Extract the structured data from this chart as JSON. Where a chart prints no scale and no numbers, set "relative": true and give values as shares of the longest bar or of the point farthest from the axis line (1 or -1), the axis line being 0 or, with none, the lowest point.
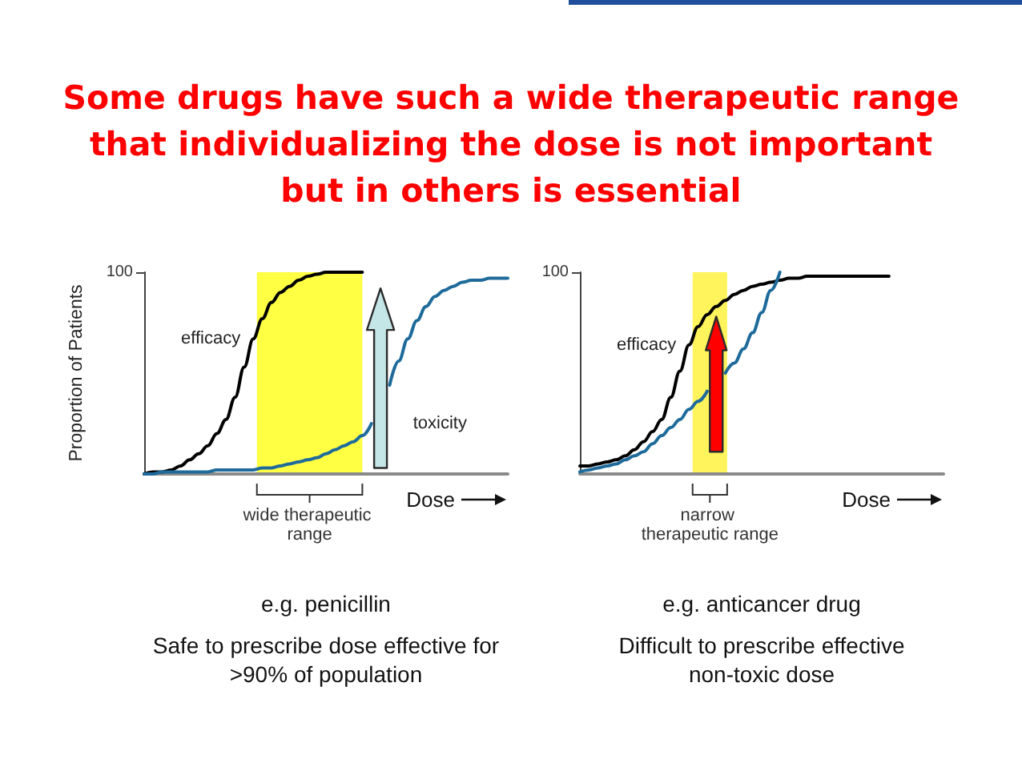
{
  "chart_data": [
    {
      "type": "line",
      "title": "Some drugs have such a wide therapeutic range that individualizing the dose is not important but in others is essential",
      "xlabel": "Dose",
      "ylabel": "Proportion of Patients",
      "relative": true,
      "categories": [
        null,
        null,
        null,
        null,
        null,
        null,
        null,
        null,
        null,
        null,
        null,
        null,
        null,
        null,
        null,
        null,
        null,
        null,
        null,
        null,
        null,
        null,
        null,
        null,
        null,
        null,
        null,
        null,
        null,
        null,
        null,
        null,
        null,
        null,
        null,
        null,
        null,
        null,
        null,
        null,
        null
      ],
      "series": [
        {
          "name": "efficacy",
          "color": "#000000",
          "values": [
            0,
            0.01,
            0.01,
            0.02,
            0.04,
            0.07,
            0.1,
            0.14,
            0.2,
            0.27,
            0.38,
            0.53,
            0.67,
            0.77,
            0.85,
            0.9,
            0.93,
            0.96,
            0.98,
            0.99,
            1,
            1,
            1,
            1,
            1,
            null,
            null,
            null,
            null,
            null,
            null,
            null,
            null,
            null,
            null,
            null,
            null,
            null,
            null,
            null,
            null
          ]
        },
        {
          "name": "toxicity",
          "color": "#1e6b9b",
          "values": [
            0,
            0,
            0.01,
            0.01,
            0.01,
            0.01,
            0.01,
            0.01,
            0.02,
            0.02,
            0.02,
            0.02,
            0.02,
            0.03,
            0.03,
            0.04,
            0.05,
            0.06,
            0.07,
            0.08,
            0.1,
            0.12,
            0.14,
            0.16,
            0.19,
            0.25,
            null,
            0.44,
            0.56,
            0.67,
            0.76,
            0.83,
            0.88,
            0.91,
            0.93,
            0.95,
            0.96,
            0.96,
            0.97,
            0.97,
            0.97
          ]
        }
      ],
      "annotations": [
        "100",
        "wide therapeutic range",
        "e.g. penicillin",
        "Safe to prescribe dose effective for >90% of population"
      ]
    },
    {
      "type": "line",
      "xlabel": "Dose",
      "relative": true,
      "categories": [
        null,
        null,
        null,
        null,
        null,
        null,
        null,
        null,
        null,
        null,
        null,
        null,
        null,
        null,
        null,
        null,
        null,
        null,
        null,
        null,
        null,
        null,
        null,
        null,
        null,
        null,
        null,
        null,
        null,
        null,
        null,
        null,
        null,
        null,
        null,
        null,
        null,
        null,
        null,
        null,
        null
      ],
      "series": [
        {
          "name": "efficacy",
          "color": "#000000",
          "values": [
            0.04,
            0.04,
            0.05,
            0.06,
            0.07,
            0.09,
            0.12,
            0.16,
            0.21,
            0.27,
            0.38,
            0.51,
            0.64,
            0.73,
            0.79,
            0.83,
            0.86,
            0.89,
            0.91,
            0.93,
            0.94,
            0.95,
            0.96,
            0.97,
            0.97,
            0.98,
            0.98,
            0.98,
            0.98,
            0.98,
            0.98,
            0.98,
            0.98,
            0.98,
            0.98,
            null,
            null,
            null,
            null,
            null,
            null
          ]
        },
        {
          "color": "#1e6b9b",
          "values": [
            0.01,
            0.02,
            0.03,
            0.04,
            0.05,
            0.07,
            0.09,
            0.11,
            0.15,
            0.19,
            0.23,
            0.27,
            0.32,
            0.36,
            0.41,
            null,
            0.5,
            0.55,
            0.62,
            0.7,
            0.8,
            0.91,
            1,
            null,
            null,
            null,
            null,
            null,
            null,
            null,
            null,
            null,
            null,
            null,
            null,
            null,
            null,
            null,
            null,
            null,
            null
          ]
        }
      ],
      "annotations": [
        "100",
        "narrow therapeutic range",
        "e.g. anticancer drug",
        "Difficult to prescribe effective non-toxic dose"
      ]
    }
  ]
}
